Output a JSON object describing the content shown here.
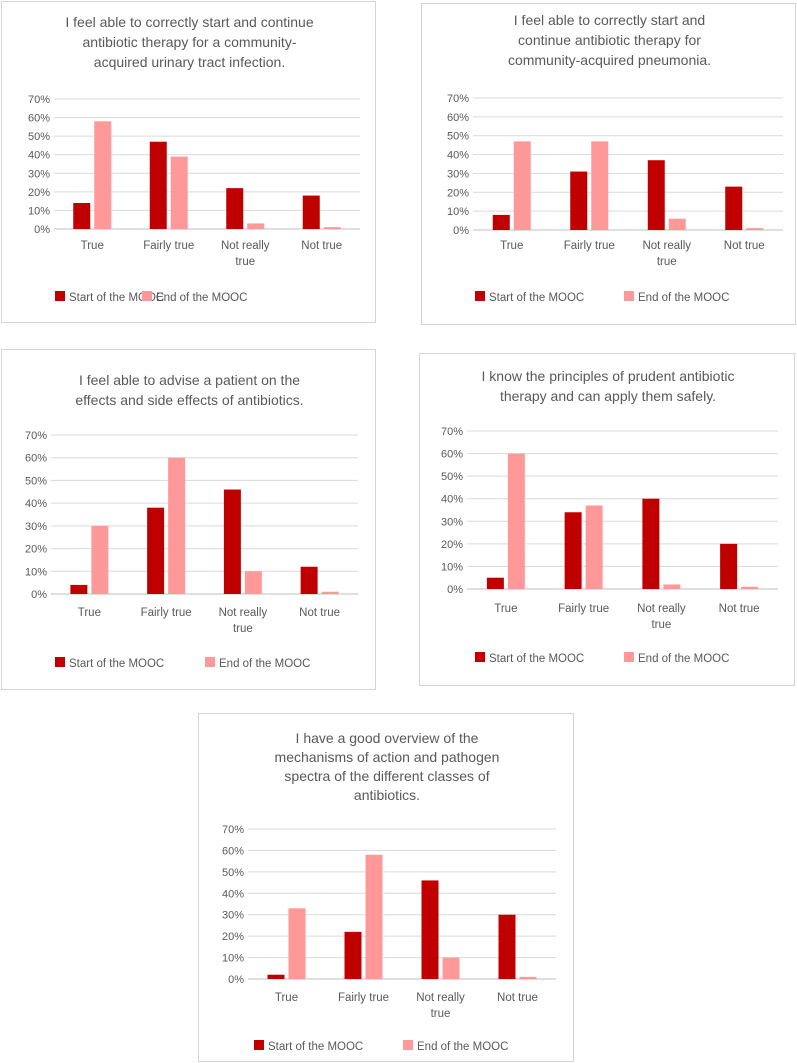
{
  "legend": {
    "start": "Start of the MOOC",
    "end": "End of the MOOC"
  },
  "colors": {
    "start": "#c00000",
    "end": "#ff9999"
  },
  "chart_data": [
    {
      "type": "bar",
      "title_lines": [
        "I feel able to correctly start and continue",
        "antibiotic therapy for a community-",
        "acquired urinary tract infection."
      ],
      "categories": [
        [
          "True"
        ],
        [
          "Fairly true"
        ],
        [
          "Not really",
          "true"
        ],
        [
          "Not true"
        ]
      ],
      "series": [
        {
          "name": "Start of the MOOC",
          "values": [
            14,
            47,
            22,
            18
          ]
        },
        {
          "name": "End of the MOOC",
          "values": [
            58,
            39,
            3,
            1
          ]
        }
      ],
      "yticks": [
        "0%",
        "10%",
        "20%",
        "30%",
        "40%",
        "50%",
        "60%",
        "70%"
      ],
      "ylim": [
        0,
        70
      ]
    },
    {
      "type": "bar",
      "title_lines": [
        "I feel able to correctly start and",
        "continue antibiotic therapy for",
        "community-acquired pneumonia."
      ],
      "categories": [
        [
          "True"
        ],
        [
          "Fairly true"
        ],
        [
          "Not really",
          "true"
        ],
        [
          "Not true"
        ]
      ],
      "series": [
        {
          "name": "Start of the MOOC",
          "values": [
            8,
            31,
            37,
            23
          ]
        },
        {
          "name": "End of the MOOC",
          "values": [
            47,
            47,
            6,
            1
          ]
        }
      ],
      "yticks": [
        "0%",
        "10%",
        "20%",
        "30%",
        "40%",
        "50%",
        "60%",
        "70%"
      ],
      "ylim": [
        0,
        70
      ]
    },
    {
      "type": "bar",
      "title_lines": [
        "I feel able to advise a patient on the",
        "effects and side effects of antibiotics."
      ],
      "categories": [
        [
          "True"
        ],
        [
          "Fairly true"
        ],
        [
          "Not really",
          "true"
        ],
        [
          "Not true"
        ]
      ],
      "series": [
        {
          "name": "Start of the MOOC",
          "values": [
            4,
            38,
            46,
            12
          ]
        },
        {
          "name": "End of the MOOC",
          "values": [
            30,
            60,
            10,
            1
          ]
        }
      ],
      "yticks": [
        "0%",
        "10%",
        "20%",
        "30%",
        "40%",
        "50%",
        "60%",
        "70%"
      ],
      "ylim": [
        0,
        70
      ]
    },
    {
      "type": "bar",
      "title_lines": [
        "I know the principles of prudent antibiotic",
        "therapy and can apply them safely."
      ],
      "categories": [
        [
          "True"
        ],
        [
          "Fairly true"
        ],
        [
          "Not really",
          "true"
        ],
        [
          "Not true"
        ]
      ],
      "series": [
        {
          "name": "Start of the MOOC",
          "values": [
            5,
            34,
            40,
            20
          ]
        },
        {
          "name": "End of the MOOC",
          "values": [
            60,
            37,
            2,
            1
          ]
        }
      ],
      "yticks": [
        "0%",
        "10%",
        "20%",
        "30%",
        "40%",
        "50%",
        "60%",
        "70%"
      ],
      "ylim": [
        0,
        70
      ]
    },
    {
      "type": "bar",
      "title_lines": [
        "I have a good overview of the",
        "mechanisms of action and pathogen",
        "spectra of the different classes of",
        "antibiotics."
      ],
      "categories": [
        [
          "True"
        ],
        [
          "Fairly true"
        ],
        [
          "Not really",
          "true"
        ],
        [
          "Not true"
        ]
      ],
      "series": [
        {
          "name": "Start of the MOOC",
          "values": [
            2,
            22,
            46,
            30
          ]
        },
        {
          "name": "End of the MOOC",
          "values": [
            33,
            58,
            10,
            1
          ]
        }
      ],
      "yticks": [
        "0%",
        "10%",
        "20%",
        "30%",
        "40%",
        "50%",
        "60%",
        "70%"
      ],
      "ylim": [
        0,
        70
      ]
    }
  ]
}
